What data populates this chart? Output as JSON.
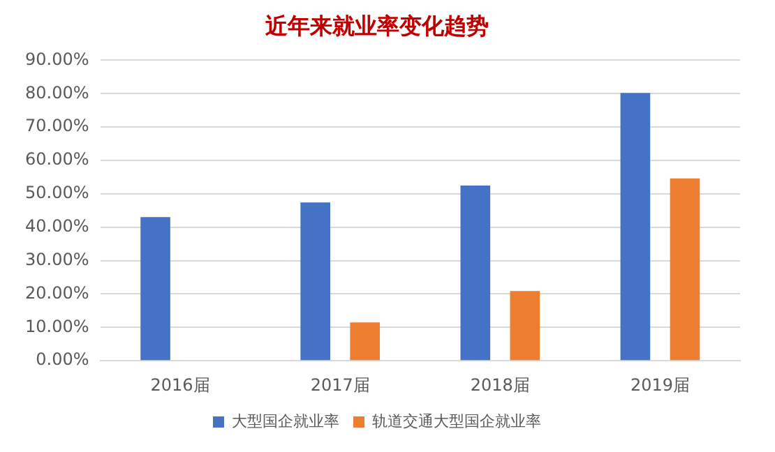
{
  "chart_data": {
    "type": "bar",
    "title": "近年来就业率变化趋势",
    "categories": [
      "2016届",
      "2017届",
      "2018届",
      "2019届"
    ],
    "series": [
      {
        "name": "大型国企就业率",
        "color": "#4472c4",
        "values": [
          43.0,
          47.4,
          52.5,
          80.2
        ]
      },
      {
        "name": "轨道交通大型国企就业率",
        "color": "#ed7d31",
        "values": [
          null,
          11.5,
          20.9,
          54.6
        ]
      }
    ],
    "ylim": [
      0,
      90
    ],
    "yticks": [
      {
        "value": 0,
        "label": "0.00%"
      },
      {
        "value": 10,
        "label": "10.00%"
      },
      {
        "value": 20,
        "label": "20.00%"
      },
      {
        "value": 30,
        "label": "30.00%"
      },
      {
        "value": 40,
        "label": "40.00%"
      },
      {
        "value": 50,
        "label": "50.00%"
      },
      {
        "value": 60,
        "label": "60.00%"
      },
      {
        "value": 70,
        "label": "70.00%"
      },
      {
        "value": 80,
        "label": "80.00%"
      },
      {
        "value": 90,
        "label": "90.00%"
      }
    ],
    "grid": "y",
    "legend": "bottom"
  }
}
